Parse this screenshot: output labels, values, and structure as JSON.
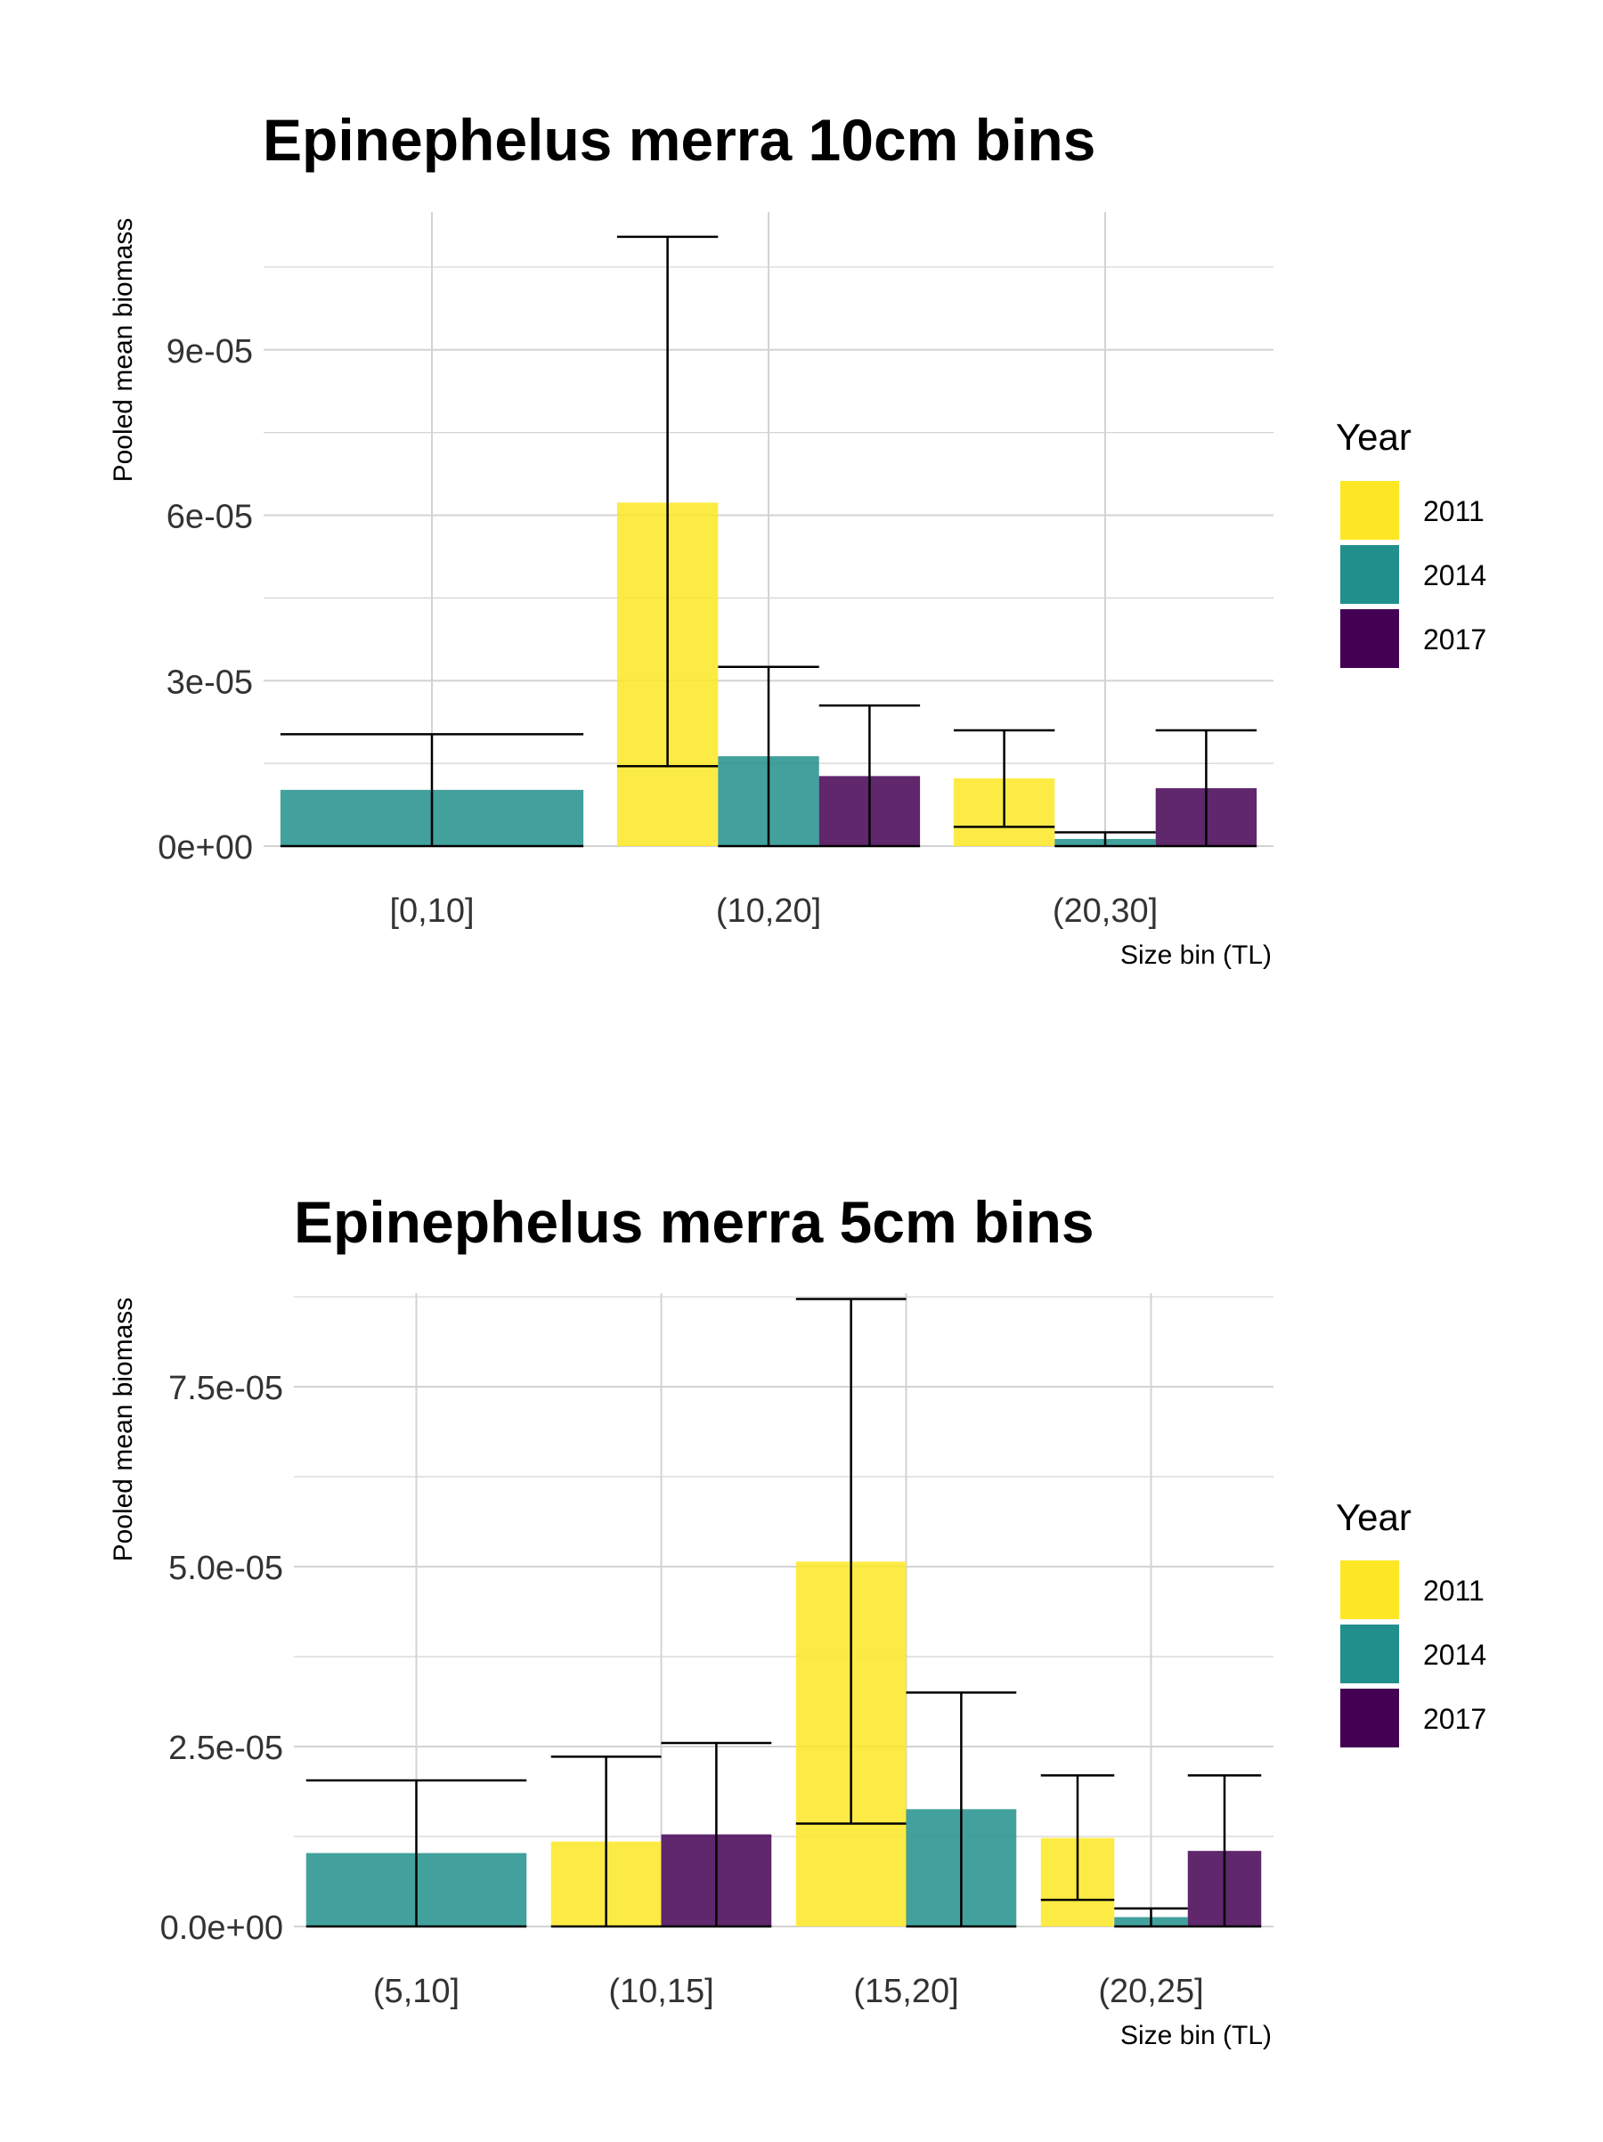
{
  "legend_title": "Year",
  "colors": {
    "2011": "#FDE725",
    "2014": "#21908C",
    "2017": "#440154",
    "grid": "#D3D3D3",
    "error": "#000000"
  },
  "chart_data": [
    {
      "type": "bar",
      "title": "Epinephelus merra 10cm bins",
      "xlabel": "Size bin (TL)",
      "ylabel": "Pooled mean biomass",
      "categories": [
        "[0,10]",
        "(10,20]",
        "(20,30]"
      ],
      "ylim": [
        0,
        0.000115
      ],
      "yticks": [
        0,
        3e-05,
        6e-05,
        9e-05
      ],
      "ytick_labels": [
        "0e+00",
        "3e-05",
        "6e-05",
        "9e-05"
      ],
      "legend": {
        "title": "Year",
        "entries": [
          "2011",
          "2014",
          "2017"
        ],
        "position": "right"
      },
      "series": [
        {
          "name": "2011",
          "values": [
            null,
            6.23e-05,
            1.23e-05
          ],
          "error_low": [
            null,
            1.45e-05,
            3.5e-06
          ],
          "error_high": [
            null,
            0.0001105,
            2.1e-05
          ]
        },
        {
          "name": "2014",
          "values": [
            1.02e-05,
            1.63e-05,
            1.3e-06
          ],
          "error_low": [
            0,
            0,
            0
          ],
          "error_high": [
            2.03e-05,
            3.25e-05,
            2.5e-06
          ]
        },
        {
          "name": "2017",
          "values": [
            null,
            1.27e-05,
            1.05e-05
          ],
          "error_low": [
            null,
            0,
            0
          ],
          "error_high": [
            null,
            2.55e-05,
            2.1e-05
          ]
        }
      ],
      "grid": true
    },
    {
      "type": "bar",
      "title": "Epinephelus merra 5cm bins",
      "xlabel": "Size bin (TL)",
      "ylabel": "Pooled mean biomass",
      "categories": [
        "(5,10]",
        "(10,15]",
        "(15,20]",
        "(20,25]"
      ],
      "ylim": [
        0,
        8.8e-05
      ],
      "yticks": [
        0,
        2.5e-05,
        5e-05,
        7.5e-05
      ],
      "ytick_labels": [
        "0.0e+00",
        "2.5e-05",
        "5.0e-05",
        "7.5e-05"
      ],
      "legend": {
        "title": "Year",
        "entries": [
          "2011",
          "2014",
          "2017"
        ],
        "position": "right"
      },
      "series": [
        {
          "name": "2011",
          "values": [
            null,
            1.18e-05,
            5.07e-05,
            1.23e-05
          ],
          "error_low": [
            null,
            0,
            1.43e-05,
            3.7e-06
          ],
          "error_high": [
            null,
            2.36e-05,
            8.72e-05,
            2.1e-05
          ]
        },
        {
          "name": "2014",
          "values": [
            1.02e-05,
            null,
            1.63e-05,
            1.3e-06
          ],
          "error_low": [
            0,
            null,
            0,
            0
          ],
          "error_high": [
            2.03e-05,
            null,
            3.25e-05,
            2.5e-06
          ]
        },
        {
          "name": "2017",
          "values": [
            null,
            1.28e-05,
            null,
            1.05e-05
          ],
          "error_low": [
            null,
            0,
            null,
            0
          ],
          "error_high": [
            null,
            2.55e-05,
            null,
            2.1e-05
          ]
        }
      ],
      "grid": true
    }
  ]
}
